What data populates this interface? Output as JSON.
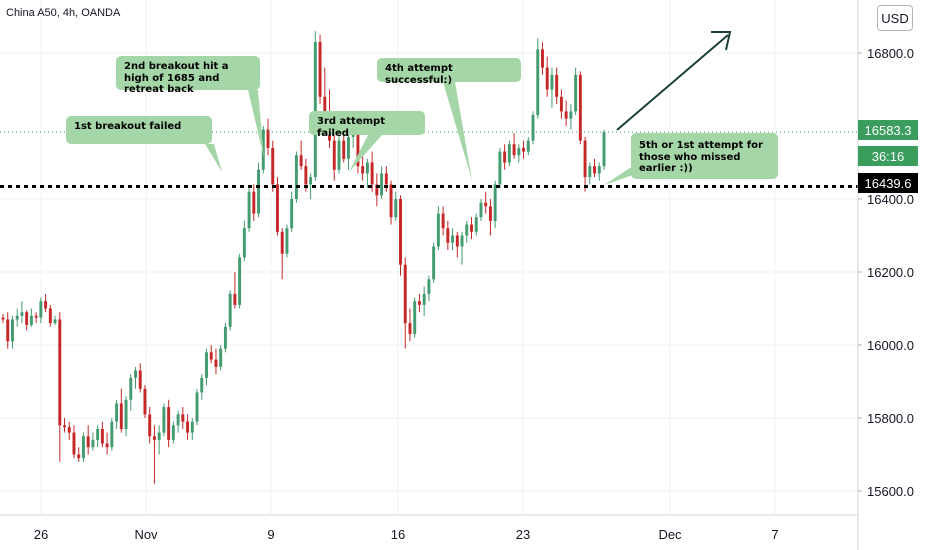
{
  "header": {
    "title": "China A50, 4h, OANDA"
  },
  "currency_button": "USD",
  "notes": {
    "n1": "1st breakout failed",
    "n2": "2nd breakout hit a high of 1685 and retreat back",
    "n3": "3rd attempt failed",
    "n4": "4th attempt successful:)",
    "n5": "5th or 1st attempt for those who missed earlier :))"
  },
  "price_tags": {
    "last": "16583.3",
    "countdown": "36:16",
    "line": "16439.6"
  },
  "colors": {
    "up": "#26a69a",
    "up_fill": "#439c6f",
    "down": "#c62828",
    "note_bg": "#a5d6a7",
    "tag_green": "#3a9d5d",
    "tag_black": "#000000",
    "arrow": "#1b4332"
  },
  "chart_data": {
    "type": "candlestick",
    "title": "China A50, 4h, OANDA",
    "ylim": [
      15530,
      16905
    ],
    "y_ticks": [
      "16800.0",
      "16400.0",
      "16200.0",
      "16000.0",
      "15800.0",
      "15600.0"
    ],
    "x_ticks": [
      "26",
      "Nov",
      "9",
      "16",
      "23",
      "Dec",
      "7"
    ],
    "last_price": 16583.3,
    "horizontal_line": 16439.6,
    "candles": [
      [
        16075,
        16085,
        16060,
        16070
      ],
      [
        16070,
        16090,
        15990,
        16010
      ],
      [
        16010,
        16080,
        15990,
        16070
      ],
      [
        16070,
        16100,
        16050,
        16080
      ],
      [
        16080,
        16120,
        16060,
        16090
      ],
      [
        16090,
        16095,
        16040,
        16055
      ],
      [
        16055,
        16100,
        16050,
        16080
      ],
      [
        16080,
        16090,
        16060,
        16075
      ],
      [
        16075,
        16130,
        16060,
        16120
      ],
      [
        16120,
        16140,
        16090,
        16100
      ],
      [
        16100,
        16110,
        16050,
        16060
      ],
      [
        16060,
        16080,
        16055,
        16070
      ],
      [
        16070,
        16090,
        15680,
        15780
      ],
      [
        15780,
        15800,
        15760,
        15775
      ],
      [
        15775,
        15790,
        15740,
        15760
      ],
      [
        15760,
        15780,
        15690,
        15700
      ],
      [
        15700,
        15720,
        15680,
        15690
      ],
      [
        15690,
        15760,
        15680,
        15750
      ],
      [
        15750,
        15780,
        15700,
        15720
      ],
      [
        15720,
        15760,
        15710,
        15740
      ],
      [
        15740,
        15780,
        15720,
        15770
      ],
      [
        15770,
        15790,
        15720,
        15730
      ],
      [
        15730,
        15760,
        15700,
        15720
      ],
      [
        15720,
        15800,
        15710,
        15790
      ],
      [
        15790,
        15850,
        15770,
        15840
      ],
      [
        15840,
        15880,
        15760,
        15770
      ],
      [
        15770,
        15860,
        15750,
        15850
      ],
      [
        15850,
        15920,
        15820,
        15910
      ],
      [
        15910,
        15940,
        15880,
        15930
      ],
      [
        15930,
        15950,
        15870,
        15880
      ],
      [
        15880,
        15890,
        15800,
        15810
      ],
      [
        15810,
        15830,
        15730,
        15750
      ],
      [
        15750,
        15780,
        15620,
        15740
      ],
      [
        15740,
        15780,
        15700,
        15760
      ],
      [
        15760,
        15840,
        15750,
        15830
      ],
      [
        15830,
        15850,
        15720,
        15740
      ],
      [
        15740,
        15790,
        15730,
        15780
      ],
      [
        15780,
        15820,
        15760,
        15810
      ],
      [
        15810,
        15830,
        15770,
        15790
      ],
      [
        15790,
        15810,
        15740,
        15760
      ],
      [
        15760,
        15800,
        15740,
        15790
      ],
      [
        15790,
        15880,
        15780,
        15870
      ],
      [
        15870,
        15920,
        15850,
        15910
      ],
      [
        15910,
        15990,
        15890,
        15980
      ],
      [
        15980,
        16000,
        15950,
        15960
      ],
      [
        15960,
        15990,
        15920,
        15940
      ],
      [
        15940,
        16000,
        15930,
        15990
      ],
      [
        15990,
        16060,
        15980,
        16050
      ],
      [
        16050,
        16150,
        16040,
        16140
      ],
      [
        16140,
        16200,
        16100,
        16110
      ],
      [
        16110,
        16250,
        16100,
        16240
      ],
      [
        16240,
        16340,
        16230,
        16320
      ],
      [
        16320,
        16430,
        16310,
        16420
      ],
      [
        16420,
        16440,
        16340,
        16360
      ],
      [
        16360,
        16500,
        16350,
        16480
      ],
      [
        16480,
        16600,
        16470,
        16590
      ],
      [
        16590,
        16620,
        16520,
        16540
      ],
      [
        16540,
        16560,
        16420,
        16440
      ],
      [
        16440,
        16460,
        16300,
        16310
      ],
      [
        16310,
        16320,
        16180,
        16250
      ],
      [
        16250,
        16330,
        16240,
        16320
      ],
      [
        16320,
        16420,
        16310,
        16400
      ],
      [
        16400,
        16530,
        16390,
        16520
      ],
      [
        16520,
        16560,
        16480,
        16490
      ],
      [
        16490,
        16510,
        16420,
        16440
      ],
      [
        16440,
        16470,
        16400,
        16460
      ],
      [
        16460,
        16860,
        16450,
        16830
      ],
      [
        16830,
        16850,
        16660,
        16680
      ],
      [
        16680,
        16760,
        16600,
        16620
      ],
      [
        16620,
        16700,
        16540,
        16560
      ],
      [
        16560,
        16600,
        16450,
        16480
      ],
      [
        16480,
        16580,
        16470,
        16560
      ],
      [
        16560,
        16610,
        16500,
        16510
      ],
      [
        16510,
        16590,
        16480,
        16570
      ],
      [
        16570,
        16620,
        16540,
        16590
      ],
      [
        16590,
        16600,
        16470,
        16490
      ],
      [
        16490,
        16520,
        16450,
        16470
      ],
      [
        16470,
        16510,
        16430,
        16500
      ],
      [
        16500,
        16530,
        16420,
        16440
      ],
      [
        16440,
        16470,
        16380,
        16410
      ],
      [
        16410,
        16490,
        16400,
        16470
      ],
      [
        16470,
        16490,
        16420,
        16440
      ],
      [
        16440,
        16450,
        16330,
        16350
      ],
      [
        16350,
        16420,
        16340,
        16400
      ],
      [
        16400,
        16410,
        16190,
        16220
      ],
      [
        16220,
        16240,
        15990,
        16060
      ],
      [
        16060,
        16100,
        16010,
        16030
      ],
      [
        16030,
        16130,
        16020,
        16120
      ],
      [
        16120,
        16140,
        16090,
        16110
      ],
      [
        16110,
        16160,
        16080,
        16140
      ],
      [
        16140,
        16190,
        16120,
        16180
      ],
      [
        16180,
        16280,
        16170,
        16270
      ],
      [
        16270,
        16380,
        16260,
        16360
      ],
      [
        16360,
        16380,
        16300,
        16320
      ],
      [
        16320,
        16340,
        16260,
        16280
      ],
      [
        16280,
        16320,
        16260,
        16300
      ],
      [
        16300,
        16310,
        16240,
        16270
      ],
      [
        16270,
        16310,
        16220,
        16300
      ],
      [
        16300,
        16340,
        16280,
        16330
      ],
      [
        16330,
        16350,
        16290,
        16310
      ],
      [
        16310,
        16360,
        16300,
        16350
      ],
      [
        16350,
        16400,
        16340,
        16390
      ],
      [
        16390,
        16420,
        16360,
        16380
      ],
      [
        16380,
        16400,
        16300,
        16340
      ],
      [
        16340,
        16450,
        16320,
        16440
      ],
      [
        16440,
        16540,
        16430,
        16530
      ],
      [
        16530,
        16550,
        16480,
        16500
      ],
      [
        16500,
        16560,
        16490,
        16550
      ],
      [
        16550,
        16580,
        16510,
        16520
      ],
      [
        16520,
        16550,
        16500,
        16540
      ],
      [
        16540,
        16560,
        16510,
        16530
      ],
      [
        16530,
        16570,
        16520,
        16560
      ],
      [
        16560,
        16640,
        16550,
        16630
      ],
      [
        16630,
        16840,
        16620,
        16810
      ],
      [
        16810,
        16830,
        16740,
        16760
      ],
      [
        16760,
        16790,
        16680,
        16700
      ],
      [
        16700,
        16760,
        16650,
        16740
      ],
      [
        16740,
        16760,
        16660,
        16680
      ],
      [
        16680,
        16700,
        16620,
        16640
      ],
      [
        16640,
        16670,
        16600,
        16620
      ],
      [
        16620,
        16660,
        16590,
        16640
      ],
      [
        16640,
        16760,
        16630,
        16740
      ],
      [
        16740,
        16750,
        16550,
        16560
      ],
      [
        16560,
        16570,
        16420,
        16460
      ],
      [
        16460,
        16500,
        16440,
        16490
      ],
      [
        16490,
        16510,
        16460,
        16470
      ],
      [
        16470,
        16500,
        16450,
        16490
      ],
      [
        16490,
        16590,
        16480,
        16583.3
      ]
    ]
  }
}
